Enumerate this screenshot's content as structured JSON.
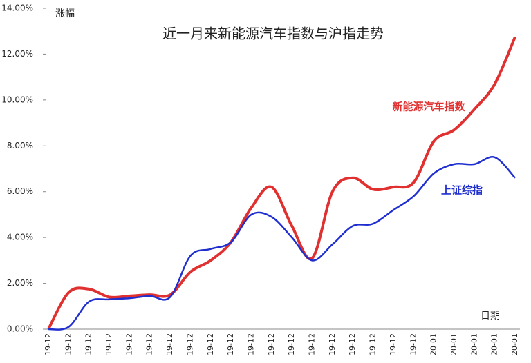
{
  "chart_data": {
    "type": "line",
    "title": "近一月来新能源汽车指数与沪指走势",
    "y_label": "涨幅",
    "x_label": "日期",
    "categories": [
      "19-12",
      "19-12",
      "19-12",
      "19-12",
      "19-12",
      "19-12",
      "19-12",
      "19-12",
      "19-12",
      "19-12",
      "19-12",
      "19-12",
      "19-12",
      "19-12",
      "19-12",
      "19-12",
      "19-12",
      "19-12",
      "19-12",
      "20-01",
      "20-01",
      "20-01",
      "20-01",
      "20-01"
    ],
    "series": [
      {
        "name": "新能源汽车指数",
        "color": "#e03030",
        "values": [
          0,
          1.6,
          1.75,
          1.4,
          1.45,
          1.5,
          1.5,
          2.5,
          3.0,
          3.8,
          5.3,
          6.2,
          4.5,
          3.1,
          6.0,
          6.6,
          6.1,
          6.2,
          6.4,
          8.2,
          8.7,
          9.6,
          10.7,
          12.75
        ]
      },
      {
        "name": "上证综指",
        "color": "#1f2fcf",
        "values": [
          0,
          0.1,
          1.2,
          1.3,
          1.35,
          1.45,
          1.4,
          3.2,
          3.5,
          3.8,
          5.0,
          4.9,
          4.0,
          3.0,
          3.7,
          4.5,
          4.6,
          5.2,
          5.8,
          6.8,
          7.2,
          7.2,
          7.5,
          6.6
        ]
      }
    ],
    "ylim": [
      0,
      14
    ],
    "yticks": [
      {
        "value": 0,
        "label": "0.00%"
      },
      {
        "value": 2,
        "label": "2.00%"
      },
      {
        "value": 4,
        "label": "4.00%"
      },
      {
        "value": 6,
        "label": "6.00%"
      },
      {
        "value": 8,
        "label": "8.00%"
      },
      {
        "value": 10,
        "label": "10.00%"
      },
      {
        "value": 12,
        "label": "12.00%"
      },
      {
        "value": 14,
        "label": "14.00%"
      }
    ],
    "grid": false
  }
}
